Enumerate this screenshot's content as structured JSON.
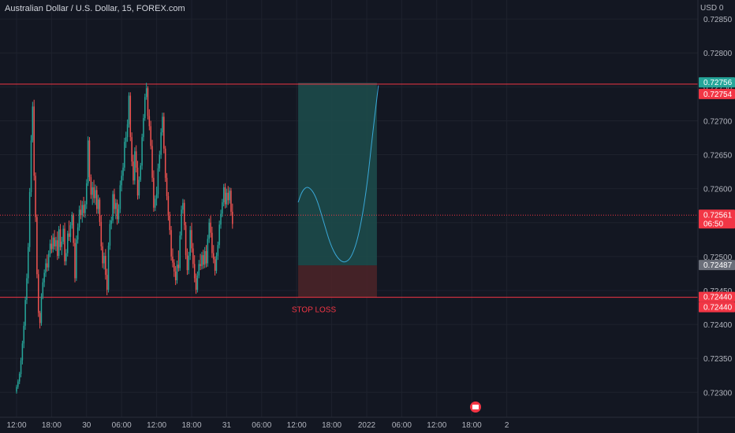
{
  "header": {
    "title": "Australian Dollar / U.S. Dollar, 15, FOREX.com",
    "currency": "USD 0"
  },
  "colors": {
    "background": "#131722",
    "up": "#26a69a",
    "down": "#ef5350",
    "line": "#f23645",
    "target_zone": "#1d4a4a",
    "stop_zone": "#4a2428",
    "projection": "#3aa8d8",
    "text": "#b2b5be"
  },
  "chart_data": {
    "type": "candlestick",
    "symbol": "Australian Dollar / U.S. Dollar",
    "interval": "15",
    "source": "FOREX.com",
    "ylim": [
      0.7229,
      0.7291
    ],
    "y_ticks": [
      "0.72850",
      "0.72800",
      "0.72750",
      "0.72700",
      "0.72650",
      "0.72600",
      "0.72550",
      "0.72500",
      "0.72450",
      "0.72400",
      "0.72350",
      "0.72300"
    ],
    "x_ticks": [
      "12:00",
      "18:00",
      "30",
      "06:00",
      "12:00",
      "18:00",
      "31",
      "06:00",
      "12:00",
      "18:00",
      "2022",
      "06:00",
      "12:00",
      "18:00",
      "2"
    ],
    "x_tick_index": [
      0,
      24,
      48,
      72,
      96,
      120,
      144,
      168,
      192,
      216,
      240,
      264,
      288,
      312,
      336
    ],
    "candles": [
      [
        0.72301,
        0.72311,
        0.72298,
        0.72308
      ],
      [
        0.72308,
        0.72319,
        0.72305,
        0.72316
      ],
      [
        0.72316,
        0.7233,
        0.72312,
        0.72327
      ],
      [
        0.72327,
        0.72351,
        0.72322,
        0.72347
      ],
      [
        0.72347,
        0.72376,
        0.72341,
        0.72372
      ],
      [
        0.72372,
        0.72404,
        0.72365,
        0.72398
      ],
      [
        0.72398,
        0.72441,
        0.72392,
        0.72436
      ],
      [
        0.72436,
        0.72475,
        0.7243,
        0.72468
      ],
      [
        0.72468,
        0.7252,
        0.7246,
        0.72514
      ],
      [
        0.72514,
        0.72601,
        0.72507,
        0.72595
      ],
      [
        0.72595,
        0.72679,
        0.72588,
        0.72671
      ],
      [
        0.72671,
        0.72728,
        0.72668,
        0.72721
      ],
      [
        0.72721,
        0.72731,
        0.72612,
        0.72619
      ],
      [
        0.72619,
        0.72624,
        0.72551,
        0.72558
      ],
      [
        0.72558,
        0.72562,
        0.72468,
        0.72474
      ],
      [
        0.72474,
        0.72481,
        0.72411,
        0.72417
      ],
      [
        0.72417,
        0.7242,
        0.72394,
        0.72402
      ],
      [
        0.72402,
        0.72446,
        0.72398,
        0.72441
      ],
      [
        0.72441,
        0.72468,
        0.72437,
        0.72462
      ],
      [
        0.72462,
        0.72481,
        0.72455,
        0.72476
      ],
      [
        0.72476,
        0.72497,
        0.7247,
        0.7249
      ],
      [
        0.7249,
        0.72503,
        0.72478,
        0.72484
      ],
      [
        0.72484,
        0.72509,
        0.72479,
        0.72504
      ],
      [
        0.72504,
        0.72525,
        0.72499,
        0.72519
      ],
      [
        0.72519,
        0.72531,
        0.72505,
        0.72511
      ],
      [
        0.72511,
        0.72534,
        0.72506,
        0.72528
      ],
      [
        0.72528,
        0.72539,
        0.7251,
        0.72515
      ],
      [
        0.72515,
        0.72529,
        0.72508,
        0.72524
      ],
      [
        0.72524,
        0.72537,
        0.72495,
        0.72501
      ],
      [
        0.72501,
        0.72545,
        0.72497,
        0.7254
      ],
      [
        0.7254,
        0.72548,
        0.72509,
        0.72514
      ],
      [
        0.72514,
        0.72529,
        0.72502,
        0.72522
      ],
      [
        0.72522,
        0.72546,
        0.72518,
        0.72541
      ],
      [
        0.72541,
        0.7255,
        0.72487,
        0.72493
      ],
      [
        0.72493,
        0.72511,
        0.72487,
        0.72505
      ],
      [
        0.72505,
        0.72538,
        0.725,
        0.72534
      ],
      [
        0.72534,
        0.72553,
        0.72523,
        0.72529
      ],
      [
        0.72529,
        0.72551,
        0.72521,
        0.72546
      ],
      [
        0.72546,
        0.72566,
        0.72541,
        0.72561
      ],
      [
        0.72561,
        0.72564,
        0.72515,
        0.7252
      ],
      [
        0.7252,
        0.72527,
        0.72462,
        0.72468
      ],
      [
        0.72468,
        0.72531,
        0.72464,
        0.72525
      ],
      [
        0.72525,
        0.72549,
        0.72519,
        0.72543
      ],
      [
        0.72543,
        0.72575,
        0.72538,
        0.72569
      ],
      [
        0.72569,
        0.72583,
        0.72555,
        0.72561
      ],
      [
        0.72561,
        0.72582,
        0.7255,
        0.72576
      ],
      [
        0.72576,
        0.72588,
        0.72558,
        0.72564
      ],
      [
        0.72564,
        0.72582,
        0.72557,
        0.72577
      ],
      [
        0.72577,
        0.72614,
        0.7257,
        0.72608
      ],
      [
        0.72608,
        0.72677,
        0.72604,
        0.72671
      ],
      [
        0.72671,
        0.72676,
        0.72611,
        0.72617
      ],
      [
        0.72617,
        0.72621,
        0.72585,
        0.72591
      ],
      [
        0.72591,
        0.7261,
        0.72576,
        0.72602
      ],
      [
        0.72602,
        0.72613,
        0.72579,
        0.72586
      ],
      [
        0.72586,
        0.72606,
        0.72576,
        0.72598
      ],
      [
        0.72598,
        0.72604,
        0.72563,
        0.7257
      ],
      [
        0.7257,
        0.72591,
        0.72563,
        0.72584
      ],
      [
        0.72584,
        0.72587,
        0.72545,
        0.72551
      ],
      [
        0.72551,
        0.72561,
        0.72509,
        0.72515
      ],
      [
        0.72515,
        0.72521,
        0.72483,
        0.7249
      ],
      [
        0.7249,
        0.72506,
        0.72481,
        0.72501
      ],
      [
        0.72501,
        0.72511,
        0.72466,
        0.72473
      ],
      [
        0.72473,
        0.72482,
        0.72443,
        0.72451
      ],
      [
        0.72451,
        0.72521,
        0.72447,
        0.72516
      ],
      [
        0.72516,
        0.72554,
        0.7251,
        0.72548
      ],
      [
        0.72548,
        0.72559,
        0.7254,
        0.72553
      ],
      [
        0.72553,
        0.72597,
        0.72549,
        0.72592
      ],
      [
        0.72592,
        0.726,
        0.72563,
        0.7257
      ],
      [
        0.7257,
        0.72585,
        0.72555,
        0.72579
      ],
      [
        0.72579,
        0.72584,
        0.72547,
        0.72555
      ],
      [
        0.72555,
        0.72577,
        0.72549,
        0.7257
      ],
      [
        0.7257,
        0.72612,
        0.72564,
        0.72605
      ],
      [
        0.72605,
        0.72627,
        0.72596,
        0.72619
      ],
      [
        0.72619,
        0.72638,
        0.72612,
        0.72631
      ],
      [
        0.72631,
        0.72675,
        0.72626,
        0.72669
      ],
      [
        0.72669,
        0.72684,
        0.7266,
        0.72676
      ],
      [
        0.72676,
        0.72702,
        0.72669,
        0.72695
      ],
      [
        0.72695,
        0.72742,
        0.7269,
        0.72737
      ],
      [
        0.72737,
        0.72742,
        0.7267,
        0.72676
      ],
      [
        0.72676,
        0.72683,
        0.72633,
        0.7264
      ],
      [
        0.7264,
        0.7265,
        0.72606,
        0.72612
      ],
      [
        0.72612,
        0.72661,
        0.72606,
        0.72655
      ],
      [
        0.72655,
        0.72664,
        0.72624,
        0.72631
      ],
      [
        0.72631,
        0.72641,
        0.72584,
        0.7259
      ],
      [
        0.7259,
        0.72618,
        0.72585,
        0.72613
      ],
      [
        0.72613,
        0.72638,
        0.7261,
        0.72634
      ],
      [
        0.72634,
        0.72681,
        0.72628,
        0.72676
      ],
      [
        0.72676,
        0.7271,
        0.7267,
        0.72704
      ],
      [
        0.72704,
        0.7274,
        0.727,
        0.72735
      ],
      [
        0.72735,
        0.72756,
        0.72731,
        0.72748
      ],
      [
        0.72748,
        0.72751,
        0.72702,
        0.72707
      ],
      [
        0.72707,
        0.72717,
        0.72686,
        0.72692
      ],
      [
        0.72692,
        0.727,
        0.72658,
        0.72663
      ],
      [
        0.72663,
        0.72672,
        0.7261,
        0.72616
      ],
      [
        0.72616,
        0.72627,
        0.72566,
        0.72572
      ],
      [
        0.72572,
        0.7259,
        0.72567,
        0.72585
      ],
      [
        0.72585,
        0.72603,
        0.72575,
        0.72592
      ],
      [
        0.72592,
        0.72637,
        0.72586,
        0.7263
      ],
      [
        0.7263,
        0.72656,
        0.72625,
        0.7265
      ],
      [
        0.7265,
        0.72689,
        0.72644,
        0.72683
      ],
      [
        0.72683,
        0.72712,
        0.72678,
        0.72706
      ],
      [
        0.72706,
        0.72712,
        0.72652,
        0.72659
      ],
      [
        0.72659,
        0.72663,
        0.7261,
        0.72616
      ],
      [
        0.72616,
        0.72623,
        0.72583,
        0.72589
      ],
      [
        0.72589,
        0.72595,
        0.72553,
        0.7256
      ],
      [
        0.7256,
        0.72566,
        0.72532,
        0.72539
      ],
      [
        0.72539,
        0.72545,
        0.72494,
        0.725
      ],
      [
        0.725,
        0.72512,
        0.72484,
        0.72491
      ],
      [
        0.72491,
        0.72496,
        0.7247,
        0.72478
      ],
      [
        0.72478,
        0.72486,
        0.72458,
        0.72465
      ],
      [
        0.72465,
        0.72494,
        0.7246,
        0.72488
      ],
      [
        0.72488,
        0.72509,
        0.72478,
        0.72483
      ],
      [
        0.72483,
        0.72537,
        0.72479,
        0.72531
      ],
      [
        0.72531,
        0.72575,
        0.72525,
        0.72569
      ],
      [
        0.72569,
        0.72585,
        0.72563,
        0.72579
      ],
      [
        0.72579,
        0.72584,
        0.72539,
        0.72546
      ],
      [
        0.72546,
        0.72551,
        0.72496,
        0.72502
      ],
      [
        0.72502,
        0.72512,
        0.72473,
        0.7248
      ],
      [
        0.7248,
        0.72507,
        0.72474,
        0.72501
      ],
      [
        0.72501,
        0.72545,
        0.72495,
        0.72539
      ],
      [
        0.72539,
        0.7255,
        0.72506,
        0.72512
      ],
      [
        0.72512,
        0.7252,
        0.72483,
        0.72489
      ],
      [
        0.72489,
        0.72502,
        0.72462,
        0.72468
      ],
      [
        0.72468,
        0.72475,
        0.72445,
        0.72451
      ],
      [
        0.72451,
        0.72478,
        0.72447,
        0.72472
      ],
      [
        0.72472,
        0.72495,
        0.72468,
        0.72489
      ],
      [
        0.72489,
        0.72504,
        0.7248,
        0.72486
      ],
      [
        0.72486,
        0.72507,
        0.72481,
        0.72502
      ],
      [
        0.72502,
        0.7251,
        0.72482,
        0.72488
      ],
      [
        0.72488,
        0.72514,
        0.72483,
        0.72508
      ],
      [
        0.72508,
        0.72517,
        0.72484,
        0.7249
      ],
      [
        0.7249,
        0.72532,
        0.72485,
        0.72526
      ],
      [
        0.72526,
        0.72556,
        0.7252,
        0.7255
      ],
      [
        0.7255,
        0.7256,
        0.72528,
        0.72535
      ],
      [
        0.72535,
        0.72544,
        0.72498,
        0.72505
      ],
      [
        0.72505,
        0.72517,
        0.7249,
        0.72496
      ],
      [
        0.72496,
        0.725,
        0.72472,
        0.72479
      ],
      [
        0.72479,
        0.72506,
        0.72475,
        0.72501
      ],
      [
        0.72501,
        0.72522,
        0.72495,
        0.72517
      ],
      [
        0.72517,
        0.72553,
        0.72512,
        0.72547
      ],
      [
        0.72547,
        0.72569,
        0.72541,
        0.72563
      ],
      [
        0.72563,
        0.72585,
        0.72558,
        0.7258
      ],
      [
        0.7258,
        0.72607,
        0.72574,
        0.72602
      ],
      [
        0.72602,
        0.72608,
        0.72571,
        0.72577
      ],
      [
        0.72577,
        0.726,
        0.72572,
        0.72594
      ],
      [
        0.72594,
        0.72604,
        0.72576,
        0.72583
      ],
      [
        0.72583,
        0.72602,
        0.72578,
        0.72597
      ],
      [
        0.72597,
        0.72601,
        0.7256,
        0.72566
      ],
      [
        0.72566,
        0.72578,
        0.72541,
        0.72548
      ]
    ],
    "lines": [
      {
        "price": 0.72754,
        "label": "0.72754"
      },
      {
        "price": 0.7244,
        "label": "0.72440"
      }
    ],
    "price_labels": [
      {
        "price": 0.72756,
        "text": "0.72756",
        "color": "#26a69a"
      },
      {
        "price": 0.72754,
        "text": "0.72754",
        "color": "#f23645"
      },
      {
        "price": 0.72561,
        "text": "0.72561",
        "subtext": "06:50",
        "color": "#f23645"
      },
      {
        "price": 0.72487,
        "text": "0.72487",
        "color": "#6b6f7a"
      },
      {
        "price": 0.7244,
        "text": "0.72440",
        "color": "#f23645"
      },
      {
        "price": 0.7244,
        "text": "0.72440",
        "color": "#f23645"
      }
    ],
    "position": {
      "entry": 0.72487,
      "target": 0.72756,
      "stop": 0.7244,
      "start_index": 193,
      "end_index": 247,
      "stop_label": "STOP LOSS"
    },
    "projection_path": [
      [
        193,
        0.7258
      ],
      [
        196,
        0.72598
      ],
      [
        200,
        0.72604
      ],
      [
        205,
        0.7259
      ],
      [
        210,
        0.72555
      ],
      [
        215,
        0.72518
      ],
      [
        220,
        0.72497
      ],
      [
        225,
        0.7249
      ],
      [
        230,
        0.725
      ],
      [
        235,
        0.72535
      ],
      [
        240,
        0.726
      ],
      [
        244,
        0.7268
      ],
      [
        248,
        0.72752
      ]
    ]
  }
}
